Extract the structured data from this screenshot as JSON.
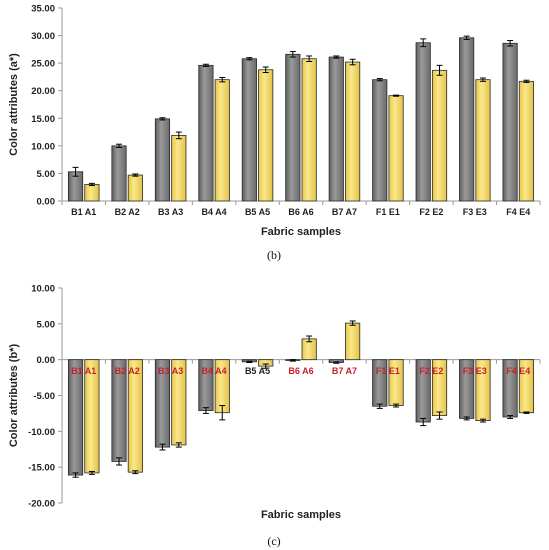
{
  "colors": {
    "grey_bar": "#7d7d7d",
    "yellow_bar": "#f2d75e",
    "bar_outline": "#2a2a2a",
    "axis": "#999999",
    "label_default": "#222222",
    "label_red": "#c8202a"
  },
  "chart_data": [
    {
      "type": "bar",
      "panel_label": "(b)",
      "xlabel": "Fabric samples",
      "ylabel": "Color attributes (a*)",
      "ylim": [
        0,
        35
      ],
      "yticks": [
        "0.00",
        "5.00",
        "10.00",
        "15.00",
        "20.00",
        "25.00",
        "30.00",
        "35.00"
      ],
      "categories": [
        "B1 A1",
        "B2 A2",
        "B3 A3",
        "B4 A4",
        "B5 A5",
        "B6 A6",
        "B7 A7",
        "F1 E1",
        "F2 E2",
        "F3 E3",
        "F4 E4"
      ],
      "series": [
        {
          "values": [
            5.3,
            10.0,
            14.9,
            24.6,
            25.8,
            26.6,
            26.1,
            22.0,
            28.7,
            29.6,
            28.6
          ],
          "errors": [
            0.8,
            0.3,
            0.2,
            0.2,
            0.2,
            0.5,
            0.2,
            0.2,
            0.7,
            0.3,
            0.5
          ]
        },
        {
          "values": [
            3.0,
            4.7,
            11.9,
            22.0,
            23.8,
            25.8,
            25.2,
            19.1,
            23.7,
            22.0,
            21.7
          ],
          "errors": [
            0.2,
            0.2,
            0.6,
            0.4,
            0.5,
            0.5,
            0.5,
            0.1,
            0.9,
            0.3,
            0.2
          ]
        }
      ],
      "grid": false,
      "legend": "none"
    },
    {
      "type": "bar",
      "panel_label": "(c)",
      "xlabel": "Fabric samples",
      "ylabel": "Color attributes (b*)",
      "ylim": [
        -20,
        10
      ],
      "yticks": [
        "-20.00",
        "-15.00",
        "-10.00",
        "-5.00",
        "0.00",
        "5.00",
        "10.00"
      ],
      "categories": [
        "B1 A1",
        "B2 A2",
        "B3 A3",
        "B4 A4",
        "B5 A5",
        "B6 A6",
        "B7 A7",
        "F1 E1",
        "F2 E2",
        "F3 E3",
        "F4 E4"
      ],
      "series": [
        {
          "values": [
            -16.1,
            -14.2,
            -12.2,
            -7.1,
            -0.3,
            -0.1,
            -0.4,
            -6.5,
            -8.7,
            -8.2,
            -8.0
          ],
          "errors": [
            0.3,
            0.5,
            0.4,
            0.4,
            0.1,
            0.1,
            0.1,
            0.3,
            0.5,
            0.2,
            0.2
          ]
        },
        {
          "values": [
            -15.8,
            -15.7,
            -11.9,
            -7.4,
            -0.9,
            2.9,
            5.1,
            -6.4,
            -7.8,
            -8.5,
            -7.4
          ],
          "errors": [
            0.2,
            0.2,
            0.3,
            1.0,
            0.3,
            0.4,
            0.3,
            0.2,
            0.5,
            0.2,
            0.1
          ]
        }
      ],
      "category_label_color": [
        "label_red",
        "label_red",
        "label_red",
        "label_red",
        "label_default",
        "label_red",
        "label_red",
        "label_red",
        "label_red",
        "label_red",
        "label_red"
      ],
      "grid": false,
      "legend": "none"
    }
  ]
}
